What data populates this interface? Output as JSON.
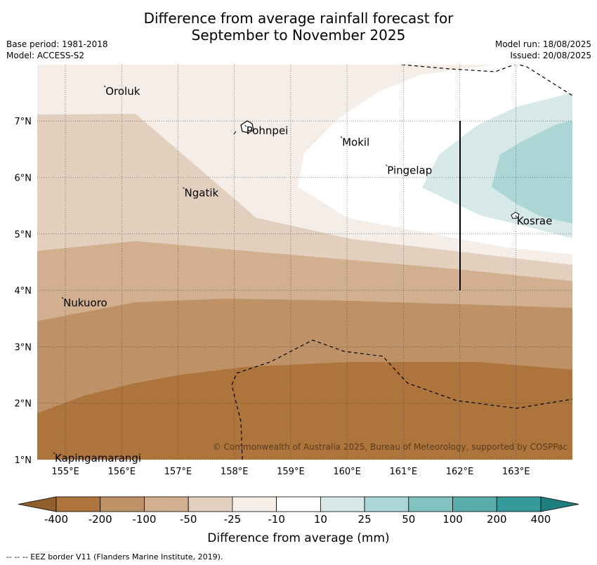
{
  "title_line1": "Difference from average rainfall forecast for",
  "title_line2": "September to November 2025",
  "base_period": "Base period: 1981-2018",
  "model": "Model: ACCESS-S2",
  "model_run": "Model run: 18/08/2025",
  "issued": "Issued: 20/08/2025",
  "copyright": "© Commonwealth of Australia 2025, Bureau of Meteorology, supported by COSPPac",
  "footer_note": "--  --  -- EEZ border V11 (Flanders Marine Institute, 2019).",
  "colorbar": {
    "title": "Difference from average (mm)",
    "labels": [
      "-400",
      "-200",
      "-100",
      "-50",
      "-25",
      "-10",
      "10",
      "25",
      "50",
      "100",
      "200",
      "400"
    ],
    "colors": [
      "#ad743b",
      "#be9266",
      "#d2b08f",
      "#e2cfbd",
      "#f4ede8",
      "#ffffff",
      "#d6e8e8",
      "#acd6d6",
      "#82c2c1",
      "#59adab",
      "#349a9a"
    ],
    "under_color": "#8f5f2d",
    "over_color": "#1f7f7f"
  },
  "axes": {
    "lon_ticks": [
      "155°E",
      "156°E",
      "157°E",
      "158°E",
      "159°E",
      "160°E",
      "161°E",
      "162°E",
      "163°E"
    ],
    "lat_ticks": [
      "7°N",
      "6°N",
      "5°N",
      "4°N",
      "3°N",
      "2°N",
      "1°N"
    ]
  },
  "places": [
    {
      "name": "Oroluk",
      "lon": 155.7,
      "lat": 7.6
    },
    {
      "name": "Pohnpei",
      "lon": 158.2,
      "lat": 6.9
    },
    {
      "name": "Mokil",
      "lon": 159.9,
      "lat": 6.7
    },
    {
      "name": "Pingelap",
      "lon": 160.7,
      "lat": 6.2
    },
    {
      "name": "Ngatik",
      "lon": 157.1,
      "lat": 5.8
    },
    {
      "name": "Kosrae",
      "lon": 163.0,
      "lat": 5.3
    },
    {
      "name": "Nukuoro",
      "lon": 154.95,
      "lat": 3.85
    },
    {
      "name": "Kapingamarangi",
      "lon": 154.8,
      "lat": 1.1
    }
  ]
}
